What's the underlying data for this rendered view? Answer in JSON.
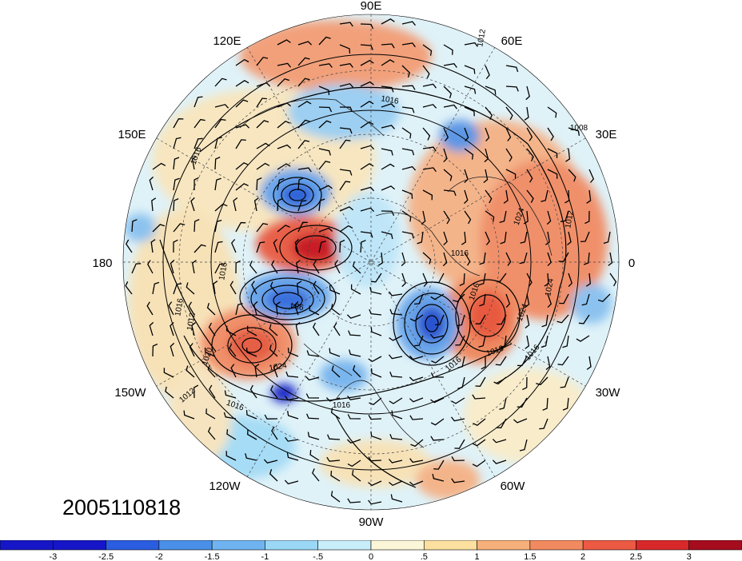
{
  "map": {
    "projection": "north polar stereographic",
    "timestamp": "2005110818",
    "longitude_labels": [
      "90E",
      "60E",
      "30E",
      "0",
      "30W",
      "60W",
      "90W",
      "120W",
      "150W",
      "180",
      "150E",
      "120E"
    ],
    "contour_field": "sea level pressure (hPa)",
    "contour_labels": [
      "1012",
      "1016",
      "1016",
      "1008",
      "1024",
      "1012",
      "1016",
      "1024",
      "1024",
      "1016",
      "1016",
      "1016",
      "1024",
      "1012",
      "1016",
      "1020",
      "1016",
      "1016",
      "1016",
      "984",
      "1012",
      "1016"
    ],
    "anomaly_features": [
      {
        "name": "cold-anomaly-north-pacific",
        "value": -3
      },
      {
        "name": "warm-anomaly-bering",
        "value": 3
      },
      {
        "name": "warm-anomaly-east-pacific",
        "value": 2
      },
      {
        "name": "warm-anomaly-north-atlantic",
        "value": 2
      },
      {
        "name": "warm-anomaly-europe",
        "value": 2
      },
      {
        "name": "cold-anomaly-labrador",
        "value": -2.5
      },
      {
        "name": "cold-anomaly-alaska-coast",
        "value": -3
      }
    ]
  },
  "colorbar": {
    "ticks": [
      "-3",
      "-2.5",
      "-2",
      "-1.5",
      "-1",
      "-.5",
      "0",
      ".5",
      "1",
      "1.5",
      "2",
      "2.5",
      "3"
    ],
    "colors": [
      "#1616c8",
      "#2a5de0",
      "#4a90e8",
      "#6fb4f0",
      "#9ad8f5",
      "#c8eefa",
      "#fbf6d8",
      "#fbe0a0",
      "#f6b07a",
      "#f28a60",
      "#ec5a44",
      "#d9282a",
      "#a50c1e"
    ]
  }
}
